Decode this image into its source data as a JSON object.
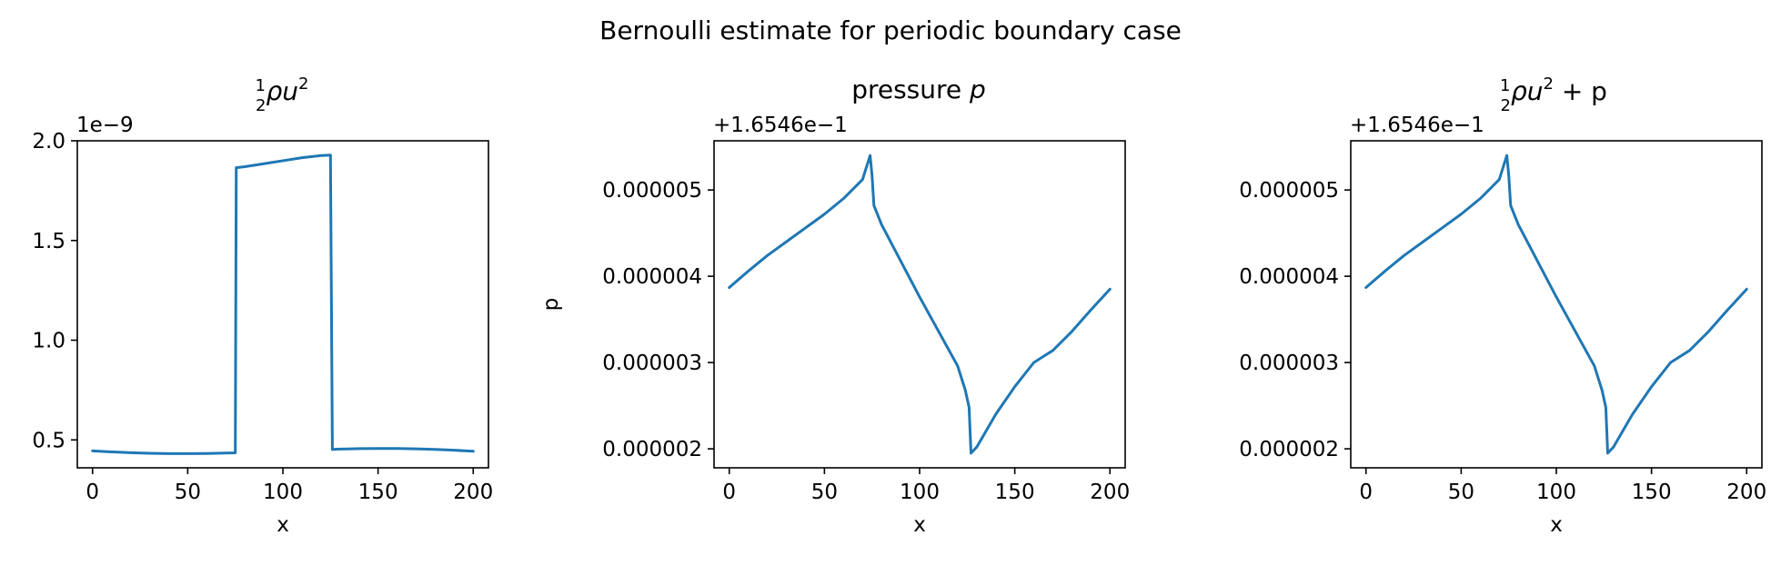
{
  "figure": {
    "suptitle": "Bernoulli estimate for periodic boundary case",
    "series_color": "#1f77b4"
  },
  "chart_data": [
    {
      "type": "line",
      "title": "½ρu²",
      "xlabel": "x",
      "ylabel": "",
      "offset_text": "1e−9",
      "xlim": [
        -8,
        208
      ],
      "ylim": [
        0.36,
        2.0
      ],
      "xticks": [
        0,
        50,
        100,
        150,
        200
      ],
      "xtick_labels": [
        "0",
        "50",
        "100",
        "150",
        "200"
      ],
      "yticks": [
        0.5,
        1.0,
        1.5,
        2.0
      ],
      "ytick_labels": [
        "0.5",
        "1.0",
        "1.5",
        "2.0"
      ],
      "x": [
        0,
        10,
        20,
        30,
        40,
        50,
        60,
        70,
        75,
        75.5,
        80,
        90,
        100,
        110,
        120,
        125,
        126,
        130,
        140,
        150,
        160,
        170,
        180,
        190,
        200
      ],
      "y": [
        0.445,
        0.44,
        0.436,
        0.433,
        0.431,
        0.431,
        0.432,
        0.434,
        0.435,
        1.865,
        1.87,
        1.885,
        1.9,
        1.915,
        1.926,
        1.928,
        0.452,
        0.454,
        0.456,
        0.457,
        0.457,
        0.455,
        0.452,
        0.448,
        0.443
      ]
    },
    {
      "type": "line",
      "title": "pressure p",
      "xlabel": "x",
      "ylabel": "p",
      "offset_text": "+1.6546e−1",
      "xlim": [
        -8,
        208
      ],
      "ylim": [
        1.78e-06,
        5.57e-06
      ],
      "xticks": [
        0,
        50,
        100,
        150,
        200
      ],
      "xtick_labels": [
        "0",
        "50",
        "100",
        "150",
        "200"
      ],
      "yticks": [
        2e-06,
        3e-06,
        4e-06,
        5e-06
      ],
      "ytick_labels": [
        "0.000002",
        "0.000003",
        "0.000004",
        "0.000005"
      ],
      "x": [
        0,
        10,
        20,
        30,
        40,
        50,
        60,
        70,
        74,
        75,
        76,
        80,
        90,
        100,
        110,
        120,
        124,
        126,
        127,
        130,
        140,
        150,
        160,
        170,
        180,
        190,
        200
      ],
      "y": [
        3.87e-06,
        4.06e-06,
        4.24e-06,
        4.4e-06,
        4.56e-06,
        4.72e-06,
        4.9e-06,
        5.12e-06,
        5.4e-06,
        5.17e-06,
        4.82e-06,
        4.6e-06,
        4.18e-06,
        3.76e-06,
        3.36e-06,
        2.96e-06,
        2.68e-06,
        2.48e-06,
        1.95e-06,
        2.02e-06,
        2.4e-06,
        2.72e-06,
        3e-06,
        3.14e-06,
        3.36e-06,
        3.61e-06,
        3.85e-06
      ]
    },
    {
      "type": "line",
      "title": "½ρu² + p",
      "xlabel": "x",
      "ylabel": "",
      "offset_text": "+1.6546e−1",
      "xlim": [
        -8,
        208
      ],
      "ylim": [
        1.78e-06,
        5.57e-06
      ],
      "xticks": [
        0,
        50,
        100,
        150,
        200
      ],
      "xtick_labels": [
        "0",
        "50",
        "100",
        "150",
        "200"
      ],
      "yticks": [
        2e-06,
        3e-06,
        4e-06,
        5e-06
      ],
      "ytick_labels": [
        "0.000002",
        "0.000003",
        "0.000004",
        "0.000005"
      ],
      "x": [
        0,
        10,
        20,
        30,
        40,
        50,
        60,
        70,
        74,
        75,
        76,
        80,
        90,
        100,
        110,
        120,
        124,
        126,
        127,
        130,
        140,
        150,
        160,
        170,
        180,
        190,
        200
      ],
      "y": [
        3.87e-06,
        4.06e-06,
        4.24e-06,
        4.4e-06,
        4.56e-06,
        4.72e-06,
        4.9e-06,
        5.12e-06,
        5.4e-06,
        5.17e-06,
        4.82e-06,
        4.6e-06,
        4.18e-06,
        3.76e-06,
        3.36e-06,
        2.96e-06,
        2.68e-06,
        2.48e-06,
        1.95e-06,
        2.02e-06,
        2.4e-06,
        2.72e-06,
        3e-06,
        3.14e-06,
        3.36e-06,
        3.61e-06,
        3.85e-06
      ]
    }
  ]
}
